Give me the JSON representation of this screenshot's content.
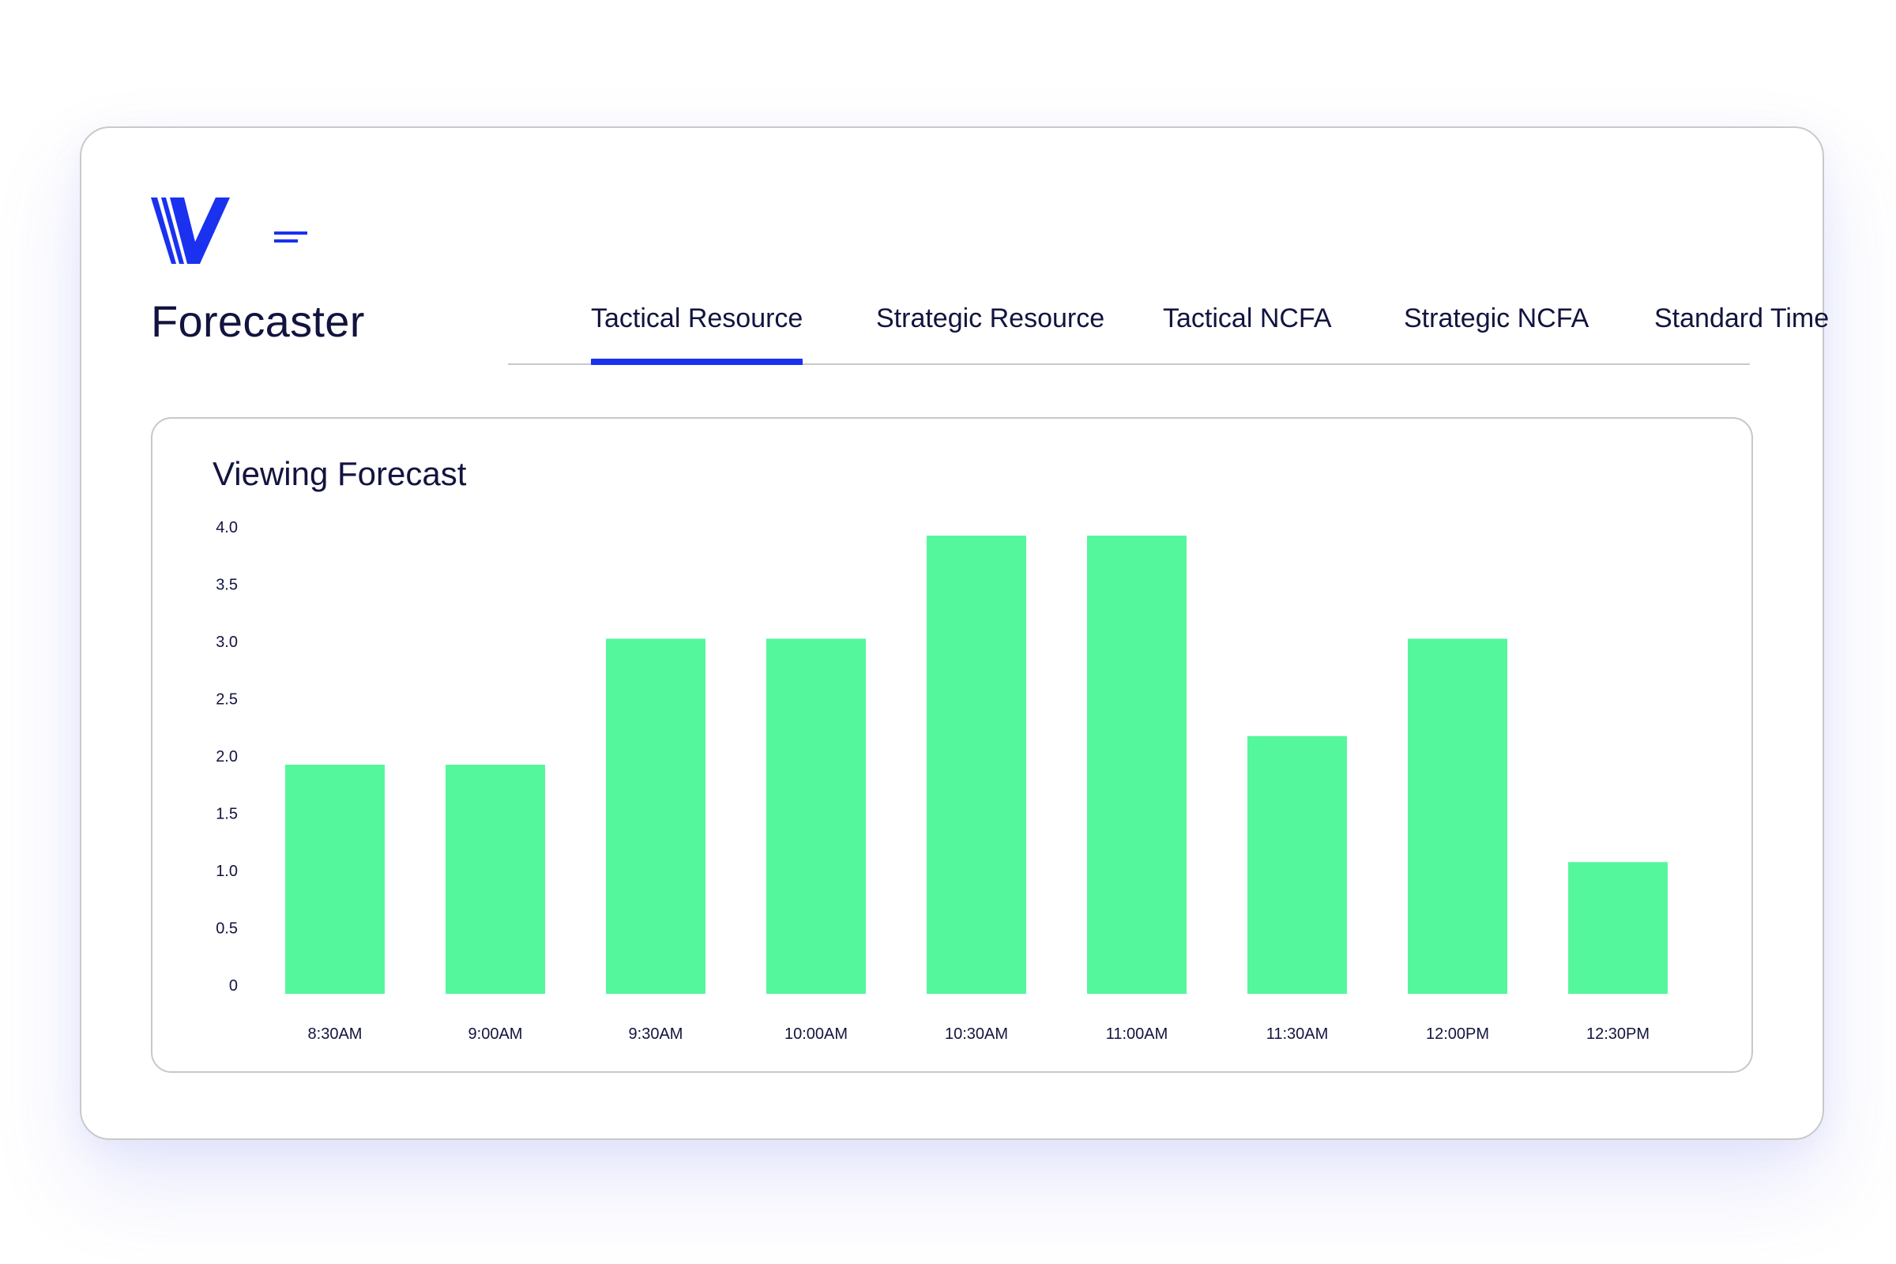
{
  "app": {
    "title": "Forecaster",
    "brand_color": "#1a31f0"
  },
  "icons": {
    "logo": "v-stripes-logo-icon",
    "menu": "menu-icon"
  },
  "tabs": [
    {
      "label": "Tactical Resource",
      "active": true
    },
    {
      "label": "Strategic Resource",
      "active": false
    },
    {
      "label": "Tactical NCFA",
      "active": false
    },
    {
      "label": "Strategic NCFA",
      "active": false
    },
    {
      "label": "Standard Time",
      "active": false
    }
  ],
  "panel": {
    "title": "Viewing Forecast"
  },
  "chart_data": {
    "type": "bar",
    "title": "Viewing Forecast",
    "categories": [
      "8:30AM",
      "9:00AM",
      "9:30AM",
      "10:00AM",
      "10:30AM",
      "11:00AM",
      "11:30AM",
      "12:00PM",
      "12:30PM"
    ],
    "values": [
      2.0,
      2.0,
      3.1,
      3.1,
      4.0,
      4.0,
      2.25,
      3.1,
      1.15
    ],
    "yticks": [
      "0",
      "0.5",
      "1.0",
      "1.5",
      "2.0",
      "2.5",
      "3.0",
      "3.5",
      "4.0"
    ],
    "ylim": [
      0,
      4
    ],
    "xlabel": "",
    "ylabel": "",
    "grid": false,
    "bar_color": "#55f79c"
  }
}
